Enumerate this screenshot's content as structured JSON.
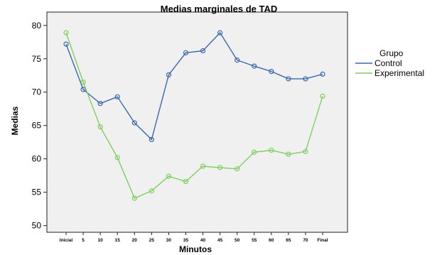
{
  "chart_data": {
    "type": "line",
    "title": "Medias marginales  de TAD",
    "xlabel": "Minutos",
    "ylabel": "Medias",
    "categories": [
      "Inicial",
      "5",
      "10",
      "15",
      "20",
      "25",
      "30",
      "35",
      "40",
      "45",
      "50",
      "55",
      "60",
      "65",
      "70",
      "Final"
    ],
    "yticks": [
      50,
      55,
      60,
      65,
      70,
      75,
      80
    ],
    "ylim": [
      49,
      82
    ],
    "grid": false,
    "legend_title": "Grupo",
    "legend_position": "right",
    "series": [
      {
        "name": "Control",
        "color": "#3a67ad",
        "values": [
          77.2,
          70.4,
          68.3,
          69.3,
          65.4,
          62.9,
          72.6,
          75.9,
          76.2,
          78.9,
          74.8,
          73.9,
          73.1,
          72.0,
          72.0,
          72.7
        ]
      },
      {
        "name": "Experimental",
        "color": "#7fcf5e",
        "values": [
          78.9,
          71.5,
          64.8,
          60.2,
          54.1,
          55.2,
          57.4,
          56.6,
          58.9,
          58.7,
          58.5,
          61.0,
          61.3,
          60.7,
          61.1,
          69.4
        ]
      }
    ]
  }
}
